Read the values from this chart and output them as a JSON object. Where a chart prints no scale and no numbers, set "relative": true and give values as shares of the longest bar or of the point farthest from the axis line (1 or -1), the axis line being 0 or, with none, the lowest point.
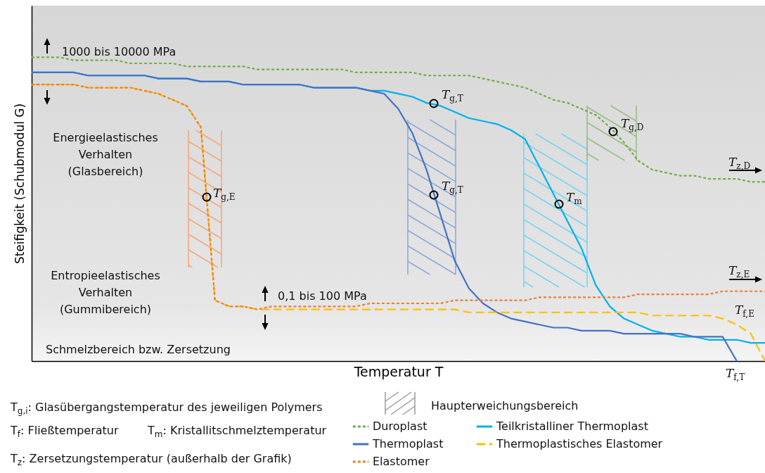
{
  "chart_data": {
    "type": "line",
    "relative": true,
    "xlabel": "Temperatur T",
    "ylabel": "Steifigkeit (Schubmodul G)",
    "tick_labels": false,
    "legend": "bottom",
    "categories": [
      null,
      null,
      null,
      null,
      null,
      null,
      null,
      null,
      null,
      null,
      null,
      null,
      null,
      null,
      null,
      null,
      null,
      null,
      null,
      null,
      null,
      null,
      null,
      null,
      null,
      null,
      null,
      null,
      null,
      null,
      null,
      null,
      null,
      null,
      null,
      null,
      null,
      null,
      null,
      null,
      null,
      null,
      null,
      null,
      null,
      null,
      null,
      null,
      null,
      null,
      null,
      null,
      null
    ],
    "series": [
      {
        "name": "Duroplast",
        "color": "#70ad47",
        "line_style": "dotted",
        "values": [
          1.0,
          1.0,
          1.0,
          0.99,
          0.99,
          0.99,
          0.99,
          0.98,
          0.98,
          0.98,
          0.98,
          0.97,
          0.97,
          0.97,
          0.97,
          0.97,
          0.96,
          0.96,
          0.96,
          0.96,
          0.96,
          0.96,
          0.96,
          0.95,
          0.95,
          0.95,
          0.95,
          0.95,
          0.94,
          0.94,
          0.94,
          0.94,
          0.93,
          0.92,
          0.91,
          0.9,
          0.88,
          0.86,
          0.85,
          0.83,
          0.81,
          0.77,
          0.72,
          0.66,
          0.63,
          0.62,
          0.61,
          0.61,
          0.6,
          0.6,
          0.6,
          0.59,
          0.59
        ]
      },
      {
        "name": "Teilkristalliner Thermoplast",
        "color": "#00b0f0",
        "line_style": "solid",
        "values": [
          0.95,
          0.95,
          0.95,
          0.95,
          0.94,
          0.94,
          0.94,
          0.94,
          0.94,
          0.93,
          0.93,
          0.93,
          0.92,
          0.92,
          0.92,
          0.91,
          0.91,
          0.91,
          0.91,
          0.91,
          0.9,
          0.9,
          0.9,
          0.9,
          0.89,
          0.89,
          0.88,
          0.87,
          0.85,
          0.84,
          0.82,
          0.8,
          0.79,
          0.78,
          0.76,
          0.73,
          0.64,
          0.55,
          0.46,
          0.37,
          0.25,
          0.18,
          0.14,
          0.12,
          0.1,
          0.09,
          0.08,
          0.08,
          0.07,
          0.07,
          0.07,
          0.06,
          0.06
        ]
      },
      {
        "name": "Thermoplast",
        "color": "#4472c4",
        "line_style": "solid",
        "values": [
          0.95,
          0.95,
          0.95,
          0.95,
          0.94,
          0.94,
          0.94,
          0.94,
          0.94,
          0.93,
          0.93,
          0.93,
          0.92,
          0.92,
          0.92,
          0.91,
          0.91,
          0.91,
          0.91,
          0.91,
          0.9,
          0.9,
          0.9,
          0.9,
          0.89,
          0.88,
          0.83,
          0.75,
          0.63,
          0.48,
          0.33,
          0.24,
          0.19,
          0.16,
          0.14,
          0.13,
          0.12,
          0.11,
          0.11,
          0.1,
          0.1,
          0.1,
          0.09,
          0.09,
          0.09,
          0.09,
          0.09,
          0.08,
          0.08,
          0.08,
          0,
          null,
          null
        ]
      },
      {
        "name": "Thermoplastisches Elastomer",
        "color": "#ffc000",
        "line_style": "dashed",
        "values": [
          0.91,
          0.91,
          0.91,
          0.91,
          0.9,
          0.9,
          0.9,
          0.9,
          0.89,
          0.88,
          0.86,
          0.84,
          0.77,
          0.2,
          0.18,
          0.18,
          0.17,
          0.17,
          0.17,
          0.17,
          0.17,
          0.17,
          0.17,
          0.17,
          0.17,
          0.17,
          0.17,
          0.17,
          0.17,
          0.17,
          0.17,
          0.16,
          0.16,
          0.16,
          0.16,
          0.16,
          0.16,
          0.16,
          0.16,
          0.16,
          0.16,
          0.16,
          0.16,
          0.16,
          0.15,
          0.15,
          0.15,
          0.15,
          0.15,
          0.14,
          0.12,
          0.09,
          0
        ]
      },
      {
        "name": "Elastomer",
        "color": "#ed7d31",
        "line_style": "dotted",
        "values": [
          0.91,
          0.91,
          0.91,
          0.91,
          0.9,
          0.9,
          0.9,
          0.9,
          0.89,
          0.88,
          0.86,
          0.84,
          0.77,
          0.2,
          0.18,
          0.18,
          0.17,
          0.18,
          0.18,
          0.18,
          0.18,
          0.18,
          0.18,
          0.18,
          0.19,
          0.19,
          0.19,
          0.19,
          0.19,
          0.19,
          0.2,
          0.2,
          0.2,
          0.2,
          0.2,
          0.2,
          0.21,
          0.21,
          0.21,
          0.21,
          0.21,
          0.21,
          0.21,
          0.22,
          0.22,
          0.22,
          0.22,
          0.22,
          0.22,
          0.23,
          0.23,
          0.23,
          0.23
        ]
      }
    ],
    "annotations": [
      "T$_{g,E}$",
      "T$_{g,T}$",
      "T$_{g,T}$",
      "T$_{m}$",
      "T$_{g,D}$",
      "T$_{z,D}$",
      "T$_{z,E}$",
      "T$_{f,E}$",
      "T$_{f,T}$",
      "1000 bis 10000 MPa",
      "0,1 bis 100 MPa",
      "Energieelastisches\nVerhalten\n(Glasbereich)",
      "Entropieelastisches\nVerhalten\n(Gummibereich)",
      "Schmelzbereich bzw. Zersetzung",
      "T$_{g,i}$: Glasübergangstemperatur des jeweiligen Polymers",
      "T$_{f}$: Fließtemperatur",
      "T$_{m}$: Kristallitschmelztemperatur",
      "T$_{z}$: Zersetzungstemperatur (außerhalb der Grafik)",
      "Haupterweichungsbereich"
    ]
  }
}
